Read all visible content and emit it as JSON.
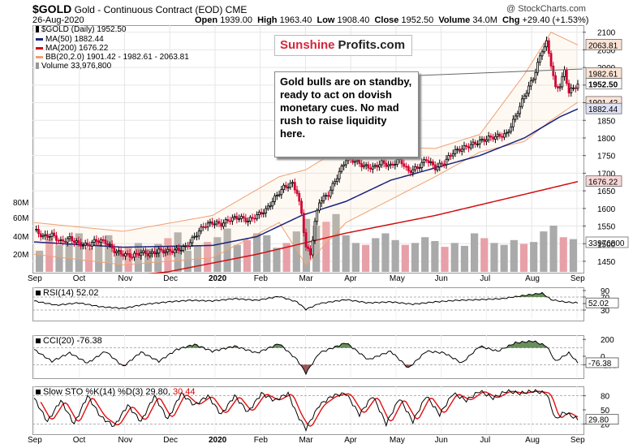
{
  "header": {
    "symbol": "$GOLD",
    "name": "Gold - Continuous Contract (EOD)",
    "exchange": "CME",
    "date": "26-Aug-2020",
    "open_label": "Open",
    "open": "1939.00",
    "high_label": "High",
    "high": "1963.40",
    "low_label": "Low",
    "low": "1908.40",
    "close_label": "Close",
    "close": "1952.50",
    "volume_label": "Volume",
    "volume": "34.0M",
    "chg_label": "Chg",
    "chg": "+29.40 (+1.53%)",
    "watermark": "@ StockCharts.com"
  },
  "legend": {
    "price": "$GOLD (Daily) 1952.50",
    "ma50": "MA(50) 1882.44",
    "ma200": "MA(200) 1676.22",
    "bb": "BB(20,2.0) 1901.42 - 1982.61 - 2063.81",
    "volume": "Volume 33,976,800"
  },
  "logo": {
    "part1": "Sunshine",
    "part2": "Profits.com"
  },
  "callout": "Gold bulls are on standby, ready to act on dovish monetary cues. No mad rush to raise liquidity here.",
  "price_tags": {
    "bb_upper": "2063.81",
    "bb_mid": "1982.61",
    "last": "1952.50",
    "bb_lower": "1901.42",
    "ma50": "1882.44",
    "ma200": "1676.22",
    "volume": "33976800"
  },
  "rsi": {
    "label": "RSI(14) 52.02",
    "value_tag": "52.02"
  },
  "cci": {
    "label": "CCI(20) -76.38",
    "value_tag": "-76.38"
  },
  "sto": {
    "label": "Slow STO %K(14) %D(3) 29.80,",
    "d_value": "30.44",
    "value_tag": "29.80"
  },
  "colors": {
    "up": "#000000",
    "down": "#d00030",
    "ma50": "#1a237e",
    "ma200": "#d01010",
    "bb": "#f0a070",
    "volume": "#aaaaaa",
    "volume_down": "#e8a0a8"
  },
  "chart_data": {
    "type": "candlestick",
    "x_labels": [
      "Sep",
      "Oct",
      "Nov",
      "Dec",
      "2020",
      "Feb",
      "Mar",
      "Apr",
      "May",
      "Jun",
      "Jul",
      "Aug",
      "Sep"
    ],
    "ylim": [
      1420,
      2120
    ],
    "y_ticks": [
      1450,
      1500,
      1550,
      1600,
      1650,
      1700,
      1750,
      1800,
      1850,
      1900,
      1950,
      2000,
      2050,
      2100
    ],
    "volume_ticks": [
      "80M",
      "60M",
      "40M",
      "20M"
    ],
    "price_path": [
      [
        0,
        1540
      ],
      [
        4,
        1520
      ],
      [
        8,
        1525
      ],
      [
        12,
        1505
      ],
      [
        16,
        1515
      ],
      [
        20,
        1500
      ],
      [
        24,
        1495
      ],
      [
        28,
        1510
      ],
      [
        32,
        1505
      ],
      [
        36,
        1480
      ],
      [
        40,
        1470
      ],
      [
        44,
        1465
      ],
      [
        48,
        1475
      ],
      [
        52,
        1470
      ],
      [
        56,
        1480
      ],
      [
        60,
        1478
      ],
      [
        64,
        1482
      ],
      [
        68,
        1490
      ],
      [
        72,
        1520
      ],
      [
        76,
        1550
      ],
      [
        80,
        1560
      ],
      [
        84,
        1555
      ],
      [
        88,
        1570
      ],
      [
        92,
        1575
      ],
      [
        96,
        1565
      ],
      [
        100,
        1580
      ],
      [
        104,
        1595
      ],
      [
        108,
        1630
      ],
      [
        112,
        1660
      ],
      [
        116,
        1670
      ],
      [
        118,
        1645
      ],
      [
        120,
        1585
      ],
      [
        122,
        1490
      ],
      [
        124,
        1470
      ],
      [
        126,
        1560
      ],
      [
        128,
        1620
      ],
      [
        132,
        1640
      ],
      [
        136,
        1690
      ],
      [
        140,
        1740
      ],
      [
        144,
        1735
      ],
      [
        148,
        1720
      ],
      [
        152,
        1715
      ],
      [
        156,
        1730
      ],
      [
        160,
        1720
      ],
      [
        164,
        1740
      ],
      [
        168,
        1705
      ],
      [
        172,
        1715
      ],
      [
        176,
        1740
      ],
      [
        180,
        1715
      ],
      [
        184,
        1730
      ],
      [
        188,
        1760
      ],
      [
        192,
        1770
      ],
      [
        196,
        1780
      ],
      [
        200,
        1790
      ],
      [
        204,
        1800
      ],
      [
        208,
        1805
      ],
      [
        212,
        1810
      ],
      [
        216,
        1860
      ],
      [
        220,
        1920
      ],
      [
        224,
        1970
      ],
      [
        228,
        2050
      ],
      [
        230,
        2070
      ],
      [
        232,
        2010
      ],
      [
        234,
        1940
      ],
      [
        236,
        1950
      ],
      [
        238,
        1990
      ],
      [
        240,
        1930
      ],
      [
        244,
        1952.5
      ]
    ],
    "ma50": [
      [
        0,
        1505
      ],
      [
        40,
        1490
      ],
      [
        80,
        1495
      ],
      [
        100,
        1520
      ],
      [
        120,
        1580
      ],
      [
        140,
        1620
      ],
      [
        160,
        1680
      ],
      [
        180,
        1715
      ],
      [
        200,
        1750
      ],
      [
        220,
        1800
      ],
      [
        236,
        1860
      ],
      [
        244,
        1882.44
      ]
    ],
    "ma200": [
      [
        0,
        1380
      ],
      [
        60,
        1420
      ],
      [
        100,
        1470
      ],
      [
        140,
        1530
      ],
      [
        180,
        1580
      ],
      [
        220,
        1640
      ],
      [
        244,
        1676.22
      ]
    ],
    "bb_upper": [
      [
        0,
        1560
      ],
      [
        40,
        1535
      ],
      [
        80,
        1580
      ],
      [
        110,
        1690
      ],
      [
        122,
        1710
      ],
      [
        140,
        1780
      ],
      [
        180,
        1770
      ],
      [
        200,
        1810
      ],
      [
        220,
        1980
      ],
      [
        232,
        2100
      ],
      [
        244,
        2063.81
      ]
    ],
    "bb_lower": [
      [
        0,
        1470
      ],
      [
        40,
        1440
      ],
      [
        80,
        1460
      ],
      [
        110,
        1560
      ],
      [
        122,
        1440
      ],
      [
        140,
        1560
      ],
      [
        180,
        1690
      ],
      [
        200,
        1760
      ],
      [
        220,
        1790
      ],
      [
        232,
        1850
      ],
      [
        244,
        1901.42
      ]
    ],
    "volume_millions": [
      22,
      35,
      28,
      30,
      40,
      25,
      33,
      38,
      21,
      26,
      30,
      24,
      29,
      35,
      41,
      22,
      27,
      31,
      36,
      45,
      28,
      33,
      40,
      38,
      25,
      30,
      42,
      55,
      48,
      52,
      60,
      38,
      30,
      28,
      35,
      40,
      33,
      28,
      30,
      36,
      32,
      26,
      30,
      27,
      40,
      35,
      30,
      28,
      33,
      29,
      31,
      42,
      48,
      36,
      34
    ],
    "rsi": {
      "ylim": [
        0,
        100
      ],
      "ticks": [
        90,
        70,
        50,
        30
      ],
      "values": [
        [
          0,
          58
        ],
        [
          10,
          45
        ],
        [
          20,
          52
        ],
        [
          30,
          40
        ],
        [
          40,
          35
        ],
        [
          50,
          48
        ],
        [
          60,
          55
        ],
        [
          70,
          60
        ],
        [
          80,
          58
        ],
        [
          90,
          65
        ],
        [
          100,
          60
        ],
        [
          110,
          72
        ],
        [
          118,
          55
        ],
        [
          122,
          32
        ],
        [
          128,
          50
        ],
        [
          140,
          62
        ],
        [
          150,
          52
        ],
        [
          160,
          55
        ],
        [
          170,
          48
        ],
        [
          180,
          55
        ],
        [
          190,
          60
        ],
        [
          200,
          62
        ],
        [
          210,
          65
        ],
        [
          220,
          75
        ],
        [
          228,
          82
        ],
        [
          232,
          62
        ],
        [
          238,
          55
        ],
        [
          244,
          52.02
        ]
      ]
    },
    "cci": {
      "ylim": [
        -250,
        250
      ],
      "ticks": [
        200,
        0,
        -100
      ],
      "values": [
        [
          0,
          80
        ],
        [
          8,
          -60
        ],
        [
          16,
          40
        ],
        [
          24,
          -80
        ],
        [
          32,
          60
        ],
        [
          40,
          -120
        ],
        [
          48,
          50
        ],
        [
          56,
          -60
        ],
        [
          64,
          80
        ],
        [
          72,
          140
        ],
        [
          80,
          60
        ],
        [
          90,
          120
        ],
        [
          100,
          40
        ],
        [
          110,
          150
        ],
        [
          118,
          -40
        ],
        [
          122,
          -200
        ],
        [
          128,
          40
        ],
        [
          140,
          160
        ],
        [
          150,
          -40
        ],
        [
          160,
          60
        ],
        [
          168,
          -140
        ],
        [
          176,
          60
        ],
        [
          184,
          40
        ],
        [
          192,
          -80
        ],
        [
          200,
          120
        ],
        [
          208,
          60
        ],
        [
          216,
          160
        ],
        [
          224,
          180
        ],
        [
          230,
          120
        ],
        [
          234,
          -60
        ],
        [
          240,
          40
        ],
        [
          244,
          -76.38
        ]
      ]
    },
    "sto": {
      "ylim": [
        0,
        100
      ],
      "ticks": [
        80,
        50,
        20
      ],
      "k": [
        [
          0,
          75
        ],
        [
          6,
          25
        ],
        [
          12,
          70
        ],
        [
          18,
          20
        ],
        [
          24,
          80
        ],
        [
          30,
          35
        ],
        [
          36,
          15
        ],
        [
          42,
          60
        ],
        [
          48,
          25
        ],
        [
          54,
          80
        ],
        [
          60,
          30
        ],
        [
          66,
          85
        ],
        [
          72,
          60
        ],
        [
          78,
          80
        ],
        [
          84,
          40
        ],
        [
          90,
          80
        ],
        [
          96,
          45
        ],
        [
          102,
          85
        ],
        [
          108,
          70
        ],
        [
          114,
          85
        ],
        [
          118,
          40
        ],
        [
          122,
          10
        ],
        [
          128,
          60
        ],
        [
          134,
          80
        ],
        [
          140,
          85
        ],
        [
          146,
          40
        ],
        [
          152,
          80
        ],
        [
          158,
          20
        ],
        [
          164,
          75
        ],
        [
          170,
          25
        ],
        [
          176,
          80
        ],
        [
          182,
          40
        ],
        [
          188,
          85
        ],
        [
          194,
          70
        ],
        [
          200,
          90
        ],
        [
          206,
          75
        ],
        [
          212,
          90
        ],
        [
          218,
          85
        ],
        [
          224,
          90
        ],
        [
          230,
          85
        ],
        [
          234,
          30
        ],
        [
          238,
          45
        ],
        [
          244,
          29.8
        ]
      ]
    }
  }
}
